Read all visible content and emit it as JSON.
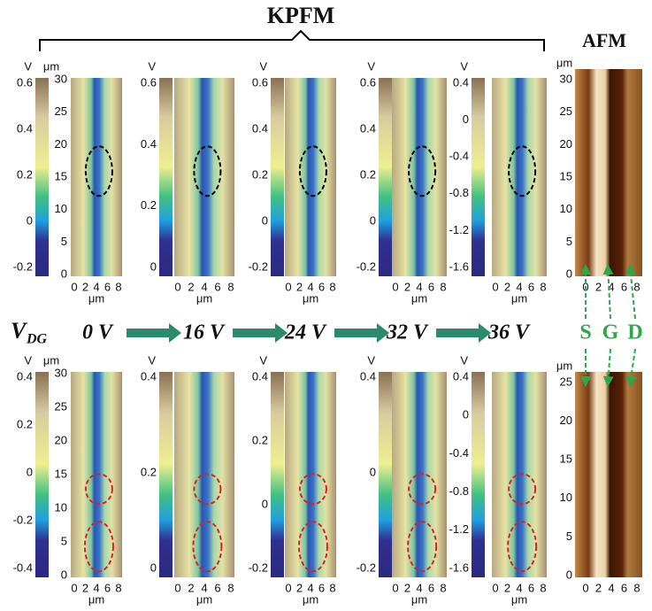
{
  "header": {
    "kpfm": "KPFM",
    "afm": "AFM"
  },
  "middle": {
    "vdg": "V",
    "vdg_sub": "DG",
    "voltages": [
      "0 V",
      "16 V",
      "24 V",
      "32 V",
      "36 V"
    ],
    "electrodes": [
      "S",
      "G",
      "D"
    ]
  },
  "rows": [
    {
      "panels": [
        {
          "unit": "V",
          "colorbar_ticks": [
            "0.6",
            "0.4",
            "0.2",
            "0",
            "-0.2"
          ],
          "y_unit": "μm",
          "y_ticks": [
            "30",
            "25",
            "20",
            "15",
            "10",
            "5",
            "0"
          ],
          "x_ticks": [
            "0",
            "2",
            "4",
            "6",
            "8"
          ],
          "x_unit": "μm"
        },
        {
          "unit": "V",
          "colorbar_ticks": [
            "0.6",
            "0.4",
            "0.2",
            "0"
          ],
          "x_ticks": [
            "0",
            "2",
            "4",
            "6",
            "8"
          ],
          "x_unit": "μm"
        },
        {
          "unit": "V",
          "colorbar_ticks": [
            "0.6",
            "0.4",
            "0.2",
            "0",
            "-0.2"
          ],
          "x_ticks": [
            "0",
            "2",
            "4",
            "6",
            "8"
          ],
          "x_unit": "μm"
        },
        {
          "unit": "V",
          "colorbar_ticks": [
            "0.6",
            "0.4",
            "0.2",
            "0",
            "-0.2"
          ],
          "x_ticks": [
            "0",
            "2",
            "4",
            "6",
            "8"
          ],
          "x_unit": "μm"
        },
        {
          "unit": "V",
          "colorbar_ticks": [
            "0.4",
            "0",
            "-0.4",
            "-0.8",
            "-1.2",
            "-1.6"
          ],
          "x_ticks": [
            "0",
            "2",
            "4",
            "6",
            "8"
          ],
          "x_unit": "μm"
        }
      ],
      "afm": {
        "y_unit": "μm",
        "y_ticks": [
          "30",
          "25",
          "20",
          "15",
          "10",
          "5",
          "0"
        ],
        "x_ticks": [
          "0",
          "2",
          "4",
          "6",
          "8"
        ]
      }
    },
    {
      "panels": [
        {
          "unit": "V",
          "colorbar_ticks": [
            "0.4",
            "0.2",
            "0",
            "-0.2",
            "-0.4"
          ],
          "y_unit": "μm",
          "y_ticks": [
            "30",
            "25",
            "20",
            "15",
            "10",
            "5",
            "0"
          ],
          "x_ticks": [
            "0",
            "2",
            "4",
            "6",
            "8"
          ],
          "x_unit": "μm"
        },
        {
          "unit": "V",
          "colorbar_ticks": [
            "0.4",
            "0.2",
            "0"
          ],
          "x_ticks": [
            "0",
            "2",
            "4",
            "6",
            "8"
          ],
          "x_unit": "μm"
        },
        {
          "unit": "V",
          "colorbar_ticks": [
            "0.4",
            "0.2",
            "0",
            "-0.2"
          ],
          "x_ticks": [
            "0",
            "2",
            "4",
            "6",
            "8"
          ],
          "x_unit": "μm"
        },
        {
          "unit": "V",
          "colorbar_ticks": [
            "0.4",
            "0",
            "-0.2"
          ],
          "x_ticks": [
            "0",
            "2",
            "4",
            "6",
            "8"
          ],
          "x_unit": "μm"
        },
        {
          "unit": "V",
          "colorbar_ticks": [
            "0.4",
            "0",
            "-0.4",
            "-0.8",
            "-1.2",
            "-1.6"
          ],
          "x_ticks": [
            "0",
            "2",
            "4",
            "6",
            "8"
          ],
          "x_unit": "μm"
        }
      ],
      "afm": {
        "y_unit": "μm",
        "y_ticks": [
          "25",
          "20",
          "15",
          "10",
          "5",
          "0"
        ],
        "x_ticks": [
          "0",
          "2",
          "4",
          "6",
          "8"
        ]
      }
    }
  ]
}
